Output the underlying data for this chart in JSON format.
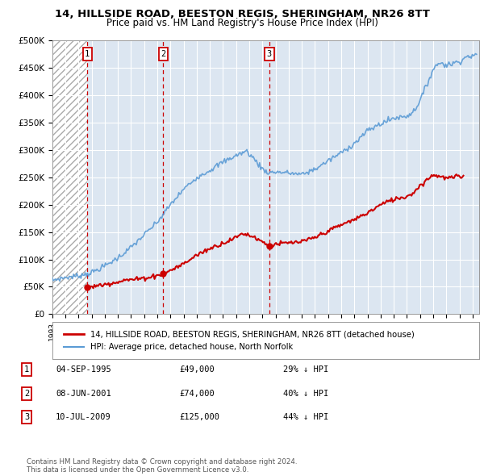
{
  "title": "14, HILLSIDE ROAD, BEESTON REGIS, SHERINGHAM, NR26 8TT",
  "subtitle": "Price paid vs. HM Land Registry's House Price Index (HPI)",
  "ylim": [
    0,
    500000
  ],
  "yticks": [
    0,
    50000,
    100000,
    150000,
    200000,
    250000,
    300000,
    350000,
    400000,
    450000,
    500000
  ],
  "ytick_labels": [
    "£0",
    "£50K",
    "£100K",
    "£150K",
    "£200K",
    "£250K",
    "£300K",
    "£350K",
    "£400K",
    "£450K",
    "£500K"
  ],
  "xlim_start": 1993.0,
  "xlim_end": 2025.5,
  "hatch_end_year": 1995.68,
  "sale_points": [
    {
      "year": 1995.67,
      "price": 49000,
      "label": "1"
    },
    {
      "year": 2001.44,
      "price": 74000,
      "label": "2"
    },
    {
      "year": 2009.52,
      "price": 125000,
      "label": "3"
    }
  ],
  "legend_entries": [
    {
      "label": "14, HILLSIDE ROAD, BEESTON REGIS, SHERINGHAM, NR26 8TT (detached house)",
      "color": "#cc0000",
      "lw": 1.5
    },
    {
      "label": "HPI: Average price, detached house, North Norfolk",
      "color": "#5b9bd5",
      "lw": 1.2
    }
  ],
  "table_rows": [
    {
      "num": "1",
      "date": "04-SEP-1995",
      "price": "£49,000",
      "note": "29% ↓ HPI"
    },
    {
      "num": "2",
      "date": "08-JUN-2001",
      "price": "£74,000",
      "note": "40% ↓ HPI"
    },
    {
      "num": "3",
      "date": "10-JUL-2009",
      "price": "£125,000",
      "note": "44% ↓ HPI"
    }
  ],
  "footer": "Contains HM Land Registry data © Crown copyright and database right 2024.\nThis data is licensed under the Open Government Licence v3.0.",
  "bg_color": "#ffffff",
  "plot_bg_color": "#dce6f1",
  "grid_color": "#ffffff",
  "hatch_color": "#aaaaaa",
  "sale_color": "#cc0000",
  "vline_color": "#cc0000",
  "box_color": "#cc0000"
}
